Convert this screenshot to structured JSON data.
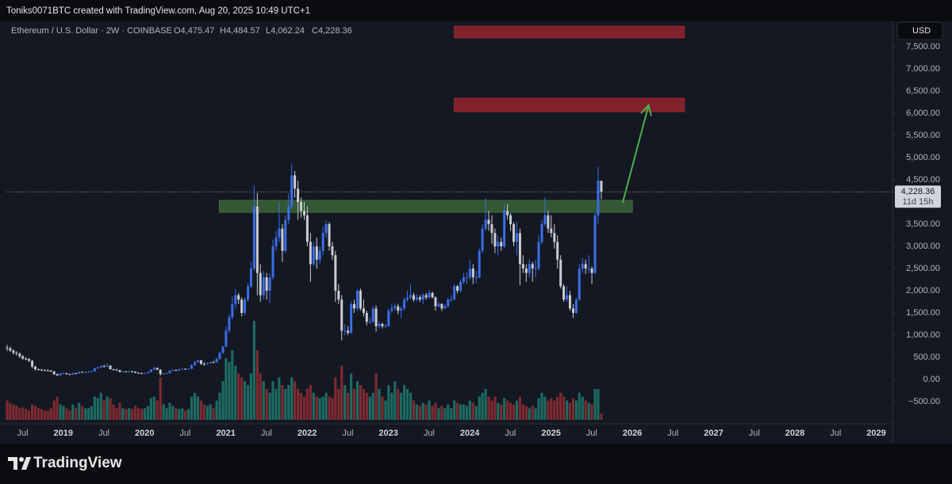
{
  "chart_data": {
    "type": "candlestick",
    "caption": "Toniks0071BTC created with TradingView.com, Aug 20, 2025 10:49 UTC+1",
    "symbol": "Ethereum / U.S. Dollar · 2W · COINBASE",
    "legend_ohlc": [
      "O4,475.47",
      "H4,484.57",
      "L4,062.24",
      "C4,228.36"
    ],
    "currency": "USD",
    "brand": "TradingView",
    "countdown": "11d 15h",
    "last_price": {
      "value": 4228.36,
      "label": "4,228.36"
    },
    "up_color": "#3a6ee8",
    "down_color": "#c9ccd4",
    "volume_up_color": "#1d6b60",
    "volume_down_color": "#7e2a30",
    "grid": false,
    "xlim": [
      2018.3,
      2029.2
    ],
    "xticks": [
      {
        "value": 2018.5,
        "label": "Jul"
      },
      2019,
      {
        "value": 2019.5,
        "label": "Jul"
      },
      2020,
      {
        "value": 2020.5,
        "label": "Jul"
      },
      2021,
      {
        "value": 2021.5,
        "label": "Jul"
      },
      2022,
      {
        "value": 2022.5,
        "label": "Jul"
      },
      2023,
      {
        "value": 2023.5,
        "label": "Jul"
      },
      2024,
      {
        "value": 2024.5,
        "label": "Jul"
      },
      2025,
      {
        "value": 2025.5,
        "label": "Jul"
      },
      2026,
      {
        "value": 2026.5,
        "label": "Jul"
      },
      2027,
      {
        "value": 2027.5,
        "label": "Jul"
      },
      2028,
      {
        "value": 2028.5,
        "label": "Jul"
      },
      2029
    ],
    "ylim": [
      -1000,
      7982
    ],
    "yticks": [
      {
        "value": 7500,
        "label": "7,500.00"
      },
      {
        "value": 7000,
        "label": "7,000.00"
      },
      {
        "value": 6500,
        "label": "6,500.00"
      },
      {
        "value": 6000,
        "label": "6,000.00"
      },
      {
        "value": 5500,
        "label": "5,500.00"
      },
      {
        "value": 5000,
        "label": "5,000.00"
      },
      {
        "value": 4500,
        "label": "4,500.00"
      },
      {
        "value": 3500,
        "label": "3,500.00"
      },
      {
        "value": 3000,
        "label": "3,000.00"
      },
      {
        "value": 2500,
        "label": "2,500.00"
      },
      {
        "value": 2000,
        "label": "2,000.00"
      },
      {
        "value": 1500,
        "label": "1,500.00"
      },
      {
        "value": 1000,
        "label": "1,000.00"
      },
      {
        "value": 500,
        "label": "500.00"
      },
      {
        "value": 0,
        "label": "0.00"
      },
      {
        "value": -500,
        "label": "−500.00"
      }
    ],
    "zones": [
      {
        "low": 7700,
        "high": 7960,
        "start": 2023.81,
        "end": 2026.64,
        "color": "#a3252f"
      },
      {
        "low": 6036,
        "high": 6339,
        "start": 2023.81,
        "end": 2026.64,
        "color": "#a3252f"
      },
      {
        "low": 3768,
        "high": 4036,
        "start": 2020.92,
        "end": 2026.0,
        "color": "#3f6e3a"
      }
    ],
    "arrow": {
      "from": [
        2025.88,
        3980
      ],
      "to": [
        2026.2,
        6180
      ],
      "color": "#4caf50"
    },
    "x": [
      2018.31,
      2018.348,
      2018.387,
      2018.425,
      2018.464,
      2018.502,
      2018.541,
      2018.579,
      2018.618,
      2018.656,
      2018.695,
      2018.733,
      2018.772,
      2018.81,
      2018.848,
      2018.887,
      2018.925,
      2018.964,
      2019.002,
      2019.041,
      2019.079,
      2019.118,
      2019.156,
      2019.195,
      2019.233,
      2019.272,
      2019.31,
      2019.348,
      2019.387,
      2019.425,
      2019.464,
      2019.502,
      2019.541,
      2019.579,
      2019.618,
      2019.656,
      2019.695,
      2019.733,
      2019.772,
      2019.81,
      2019.848,
      2019.887,
      2019.925,
      2019.964,
      2020.002,
      2020.041,
      2020.079,
      2020.118,
      2020.156,
      2020.195,
      2020.233,
      2020.272,
      2020.31,
      2020.348,
      2020.387,
      2020.425,
      2020.464,
      2020.502,
      2020.541,
      2020.579,
      2020.618,
      2020.656,
      2020.695,
      2020.733,
      2020.772,
      2020.81,
      2020.848,
      2020.887,
      2020.925,
      2020.964,
      2021.002,
      2021.041,
      2021.079,
      2021.118,
      2021.156,
      2021.195,
      2021.233,
      2021.272,
      2021.31,
      2021.348,
      2021.387,
      2021.425,
      2021.464,
      2021.502,
      2021.541,
      2021.579,
      2021.618,
      2021.656,
      2021.695,
      2021.733,
      2021.772,
      2021.81,
      2021.848,
      2021.887,
      2021.925,
      2021.964,
      2022.002,
      2022.041,
      2022.079,
      2022.118,
      2022.156,
      2022.195,
      2022.233,
      2022.272,
      2022.31,
      2022.348,
      2022.387,
      2022.425,
      2022.464,
      2022.502,
      2022.541,
      2022.579,
      2022.618,
      2022.656,
      2022.695,
      2022.733,
      2022.772,
      2022.81,
      2022.848,
      2022.887,
      2022.925,
      2022.964,
      2023.002,
      2023.041,
      2023.079,
      2023.118,
      2023.156,
      2023.195,
      2023.233,
      2023.272,
      2023.31,
      2023.348,
      2023.387,
      2023.425,
      2023.464,
      2023.502,
      2023.541,
      2023.579,
      2023.618,
      2023.656,
      2023.695,
      2023.733,
      2023.772,
      2023.81,
      2023.848,
      2023.887,
      2023.925,
      2023.964,
      2024.002,
      2024.041,
      2024.079,
      2024.118,
      2024.156,
      2024.195,
      2024.233,
      2024.272,
      2024.31,
      2024.348,
      2024.387,
      2024.425,
      2024.464,
      2024.502,
      2024.541,
      2024.579,
      2024.618,
      2024.656,
      2024.695,
      2024.733,
      2024.772,
      2024.81,
      2024.848,
      2024.887,
      2024.925,
      2024.964,
      2025.002,
      2025.041,
      2025.079,
      2025.118,
      2025.156,
      2025.195,
      2025.233,
      2025.272,
      2025.31,
      2025.348,
      2025.387,
      2025.425,
      2025.464,
      2025.502,
      2025.541,
      2025.579,
      2025.618
    ],
    "open": [
      720,
      700,
      650,
      600,
      580,
      520,
      470,
      460,
      420,
      290,
      230,
      220,
      210,
      205,
      200,
      180,
      120,
      90,
      135,
      140,
      120,
      110,
      140,
      135,
      170,
      160,
      165,
      175,
      180,
      250,
      270,
      300,
      290,
      310,
      230,
      220,
      210,
      170,
      180,
      170,
      180,
      175,
      150,
      145,
      130,
      140,
      165,
      220,
      260,
      220,
      120,
      130,
      140,
      200,
      215,
      200,
      230,
      240,
      230,
      240,
      320,
      390,
      430,
      350,
      340,
      360,
      390,
      385,
      460,
      600,
      740,
      1100,
      1400,
      1700,
      1900,
      1800,
      1500,
      1800,
      2100,
      2500,
      3900,
      2400,
      1900,
      2300,
      2000,
      2300,
      3000,
      3200,
      3400,
      2900,
      3600,
      3900,
      4600,
      4300,
      4000,
      3800,
      3700,
      3100,
      2600,
      3000,
      2700,
      2900,
      3300,
      3500,
      3000,
      2800,
      2000,
      1800,
      1100,
      1100,
      1050,
      1700,
      1600,
      2000,
      1600,
      1500,
      1300,
      1300,
      1600,
      1200,
      1250,
      1200,
      1200,
      1550,
      1600,
      1650,
      1550,
      1600,
      1800,
      1850,
      1900,
      1800,
      1850,
      1800,
      1900,
      1850,
      1950,
      1850,
      1650,
      1700,
      1600,
      1650,
      1800,
      1800,
      2100,
      2000,
      2200,
      2300,
      2300,
      2500,
      2300,
      2300,
      2900,
      3400,
      3600,
      3500,
      3300,
      3000,
      3100,
      3000,
      3800,
      3700,
      3500,
      3100,
      3300,
      2600,
      2500,
      2400,
      2600,
      2500,
      2500,
      3100,
      3500,
      3700,
      3400,
      3300,
      3100,
      2700,
      2100,
      1800,
      1900,
      1600,
      1500,
      1800,
      2500,
      2600,
      2500,
      2500,
      2400,
      3700,
      4475.47
    ],
    "high": [
      780,
      740,
      680,
      640,
      610,
      550,
      500,
      480,
      440,
      310,
      250,
      240,
      230,
      230,
      215,
      190,
      130,
      145,
      160,
      150,
      130,
      150,
      150,
      180,
      185,
      180,
      190,
      195,
      270,
      290,
      320,
      330,
      360,
      320,
      240,
      240,
      220,
      195,
      190,
      195,
      200,
      185,
      160,
      155,
      150,
      175,
      230,
      285,
      270,
      230,
      145,
      155,
      210,
      230,
      225,
      245,
      255,
      250,
      250,
      340,
      410,
      445,
      440,
      390,
      385,
      395,
      420,
      490,
      620,
      760,
      1200,
      1470,
      1880,
      2040,
      1950,
      1850,
      1850,
      2180,
      2650,
      4380,
      4200,
      2600,
      2450,
      2400,
      2400,
      3150,
      3350,
      4000,
      3500,
      3700,
      4200,
      4870,
      4700,
      4480,
      4100,
      4000,
      3900,
      3300,
      3100,
      3200,
      3000,
      3450,
      3580,
      3550,
      3100,
      2900,
      2150,
      1900,
      1250,
      1200,
      1750,
      1800,
      2030,
      2050,
      1800,
      1550,
      1400,
      1650,
      1670,
      1300,
      1280,
      1250,
      1600,
      1700,
      1720,
      1700,
      1650,
      1850,
      2000,
      2140,
      1950,
      1930,
      1900,
      1950,
      1950,
      2020,
      1980,
      1870,
      1750,
      1720,
      1700,
      1850,
      1900,
      2140,
      2130,
      2250,
      2400,
      2420,
      2700,
      2600,
      2450,
      2950,
      3500,
      4090,
      3800,
      3700,
      3400,
      3250,
      3200,
      3950,
      3950,
      3750,
      3550,
      3560,
      3400,
      2800,
      2600,
      2700,
      2650,
      2700,
      3250,
      3600,
      4110,
      3800,
      3700,
      3500,
      3250,
      2800,
      2150,
      2100,
      2000,
      1700,
      1850,
      2600,
      2740,
      2700,
      2800,
      2550,
      3750,
      4790,
      4484.57
    ],
    "low": [
      640,
      620,
      560,
      540,
      480,
      440,
      430,
      390,
      250,
      200,
      200,
      190,
      190,
      180,
      165,
      100,
      82,
      85,
      125,
      110,
      100,
      105,
      125,
      130,
      150,
      150,
      155,
      165,
      175,
      235,
      255,
      270,
      280,
      220,
      200,
      195,
      160,
      165,
      160,
      160,
      165,
      140,
      130,
      120,
      125,
      135,
      160,
      210,
      210,
      90,
      110,
      125,
      135,
      190,
      185,
      195,
      220,
      220,
      225,
      235,
      310,
      375,
      330,
      310,
      335,
      355,
      370,
      380,
      450,
      580,
      720,
      1050,
      1360,
      1600,
      1700,
      1420,
      1450,
      1750,
      2050,
      2450,
      1900,
      1750,
      1800,
      1800,
      1720,
      2250,
      2900,
      3100,
      2650,
      2850,
      3500,
      3850,
      4100,
      3600,
      3650,
      3600,
      3000,
      2200,
      2550,
      2500,
      2600,
      2800,
      3200,
      2900,
      2700,
      1750,
      1700,
      880,
      1000,
      1000,
      1030,
      1500,
      1550,
      1550,
      1420,
      1220,
      1250,
      1280,
      1080,
      1150,
      1150,
      1170,
      1190,
      1500,
      1550,
      1470,
      1380,
      1550,
      1750,
      1800,
      1750,
      1760,
      1750,
      1700,
      1800,
      1820,
      1830,
      1550,
      1620,
      1540,
      1580,
      1620,
      1750,
      1790,
      1940,
      1960,
      2150,
      2150,
      2250,
      2150,
      2170,
      2280,
      2850,
      3350,
      3350,
      3050,
      2850,
      2800,
      2900,
      2950,
      3600,
      3350,
      3000,
      2800,
      2120,
      2400,
      2200,
      2300,
      2200,
      2300,
      2450,
      3050,
      3450,
      3300,
      3200,
      2950,
      2500,
      2050,
      1750,
      1750,
      1550,
      1385,
      1480,
      1780,
      2400,
      2380,
      2400,
      2150,
      2380,
      3500,
      4062.24
    ],
    "close": [
      700,
      650,
      600,
      580,
      520,
      470,
      460,
      420,
      290,
      230,
      220,
      210,
      205,
      200,
      180,
      120,
      90,
      135,
      140,
      120,
      110,
      140,
      135,
      170,
      160,
      165,
      175,
      180,
      250,
      270,
      300,
      290,
      310,
      230,
      220,
      210,
      170,
      180,
      170,
      180,
      175,
      150,
      145,
      130,
      140,
      165,
      220,
      260,
      220,
      120,
      130,
      140,
      200,
      215,
      200,
      230,
      240,
      230,
      240,
      320,
      390,
      430,
      350,
      340,
      360,
      390,
      385,
      460,
      600,
      740,
      1100,
      1400,
      1700,
      1900,
      1800,
      1500,
      1800,
      2100,
      2500,
      3900,
      2400,
      1900,
      2300,
      2000,
      2300,
      3000,
      3200,
      3400,
      2900,
      3600,
      3900,
      4600,
      4300,
      4000,
      3800,
      3700,
      3100,
      2600,
      3000,
      2700,
      2900,
      3300,
      3500,
      3000,
      2800,
      2000,
      1800,
      1100,
      1100,
      1050,
      1700,
      1600,
      2000,
      1600,
      1500,
      1300,
      1300,
      1600,
      1200,
      1250,
      1200,
      1200,
      1550,
      1600,
      1650,
      1550,
      1600,
      1800,
      1850,
      1900,
      1800,
      1850,
      1800,
      1900,
      1850,
      1950,
      1850,
      1650,
      1700,
      1600,
      1650,
      1800,
      1800,
      2100,
      2000,
      2200,
      2300,
      2300,
      2500,
      2300,
      2300,
      2900,
      3400,
      3600,
      3500,
      3300,
      3000,
      3100,
      3000,
      3800,
      3700,
      3500,
      3100,
      3300,
      2600,
      2500,
      2400,
      2600,
      2500,
      2500,
      3100,
      3500,
      3700,
      3400,
      3300,
      3100,
      2700,
      2100,
      1800,
      1900,
      1600,
      1500,
      1800,
      2500,
      2600,
      2500,
      2500,
      2400,
      3700,
      4475.47,
      4228.36
    ],
    "volume": [
      25,
      22,
      20,
      18,
      15,
      16,
      14,
      12,
      20,
      18,
      15,
      14,
      12,
      12,
      15,
      25,
      30,
      20,
      18,
      15,
      12,
      20,
      15,
      22,
      18,
      15,
      15,
      18,
      30,
      28,
      35,
      25,
      30,
      28,
      20,
      15,
      22,
      15,
      14,
      15,
      14,
      18,
      15,
      14,
      15,
      18,
      28,
      30,
      25,
      55,
      20,
      15,
      22,
      18,
      15,
      14,
      15,
      12,
      14,
      30,
      35,
      30,
      25,
      20,
      18,
      20,
      15,
      25,
      35,
      50,
      80,
      75,
      90,
      70,
      60,
      55,
      50,
      45,
      60,
      128,
      90,
      60,
      50,
      40,
      35,
      50,
      40,
      55,
      45,
      40,
      45,
      55,
      50,
      40,
      35,
      30,
      40,
      45,
      35,
      30,
      28,
      30,
      35,
      30,
      28,
      55,
      40,
      70,
      45,
      35,
      60,
      40,
      50,
      45,
      40,
      35,
      30,
      35,
      60,
      40,
      30,
      25,
      45,
      35,
      50,
      40,
      35,
      45,
      40,
      35,
      25,
      20,
      18,
      22,
      20,
      25,
      18,
      22,
      15,
      18,
      15,
      20,
      15,
      25,
      22,
      20,
      20,
      18,
      25,
      22,
      18,
      30,
      35,
      40,
      30,
      25,
      30,
      22,
      20,
      28,
      25,
      22,
      20,
      25,
      30,
      20,
      18,
      15,
      18,
      15,
      28,
      35,
      30,
      25,
      28,
      25,
      30,
      35,
      30,
      25,
      22,
      28,
      25,
      35,
      30,
      25,
      22,
      20,
      40,
      40,
      8
    ]
  }
}
